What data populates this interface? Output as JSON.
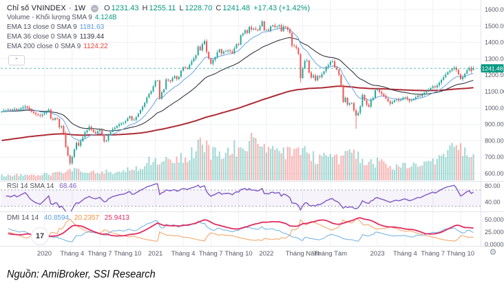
{
  "page": {
    "caption": "Nguồn: AmiBroker, SSI Research"
  },
  "header": {
    "title": "Chỉ số VNINDEX",
    "separator": "·",
    "interval": "1W",
    "dot_icon_glyph": "–",
    "ohlc": {
      "o_label": "O",
      "o": "1231.43",
      "h_label": "H",
      "h": "1255.11",
      "l_label": "L",
      "l": "1228.70",
      "c_label": "C",
      "c": "1241.48",
      "change": "+17.43 (+1.42%)"
    },
    "volume_label": "Volume - Khối lượng SMA 9",
    "volume_value": "4.124B",
    "ema13_label": "EMA 13 close 0 SMA 9",
    "ema13_value": "1181.63",
    "ema36_label": "EMA 36 close 0 SMA 9",
    "ema36_value": "1139.44",
    "ema200_label": "EMA 200 close 0 SMA 9",
    "ema200_value": "1124.22",
    "collapse_glyph": "⌃"
  },
  "rsi_panel": {
    "label": "RSI 14 SMA 14",
    "value": "68.46"
  },
  "dmi_panel": {
    "label": "DMI 14 14",
    "plus_di": "40.8594",
    "minus_di": "20.2357",
    "adx": "25.9413"
  },
  "watermark_glyph": "17",
  "gear_glyph": "⚙",
  "colors": {
    "up": "#26a69a",
    "down": "#ef5350",
    "ema13": "#74a9e6",
    "ema36": "#33363e",
    "ema200": "#ad2a34",
    "rsi": "#7e57c2",
    "rsi_band_fill": "#7e57c2",
    "plus_di": "#6aaede",
    "minus_di": "#f2a05c",
    "adx": "#e0295e",
    "grid": "#eef0f4",
    "separator": "#e0e3eb",
    "axis_text": "#565a65",
    "price_tag_bg": "#089981",
    "price_line": "#26a69a",
    "dashed_level": "#9aa0ad"
  },
  "chart_data": {
    "type": "candlestick",
    "title": "Chỉ số VNINDEX · 1W",
    "timeframe": "weekly",
    "price_axis": {
      "min": 600,
      "max": 1600,
      "step": 100,
      "last_price": 1241.48,
      "last_price_label": "1241.48"
    },
    "rsi_axis": {
      "ticks": [
        {
          "value": 80,
          "label": "80.00"
        },
        {
          "value": 40,
          "label": "40.00"
        }
      ],
      "upper_band": 70,
      "lower_band": 30
    },
    "dmi_axis": {
      "ticks": [
        {
          "value": 50,
          "label": "50.0000"
        },
        {
          "value": 25,
          "label": "25.0000"
        },
        {
          "value": 0,
          "label": "0.0000"
        }
      ]
    },
    "x_labels": [
      {
        "text": "2020",
        "week": 20
      },
      {
        "text": "Tháng 4",
        "week": 33
      },
      {
        "text": "Tháng 7",
        "week": 46
      },
      {
        "text": "Tháng 10",
        "week": 59
      },
      {
        "text": "2021",
        "week": 72
      },
      {
        "text": "Tháng 4",
        "week": 85
      },
      {
        "text": "Tháng 7",
        "week": 98
      },
      {
        "text": "Tháng 10",
        "week": 111
      },
      {
        "text": "2022",
        "week": 124
      },
      {
        "text": "Tháng Năm",
        "week": 141
      },
      {
        "text": "Tháng Tám",
        "week": 154
      },
      {
        "text": "2023",
        "week": 176
      },
      {
        "text": "Tháng 4",
        "week": 189
      },
      {
        "text": "Tháng 7",
        "week": 202
      },
      {
        "text": "Tháng 10",
        "week": 215
      }
    ],
    "closes": [
      978,
      984,
      988,
      990,
      985,
      990,
      995,
      988,
      992,
      998,
      1004,
      1010,
      1002,
      988,
      978,
      970,
      962,
      958,
      952,
      960,
      968,
      978,
      990,
      936,
      928,
      938,
      934,
      882,
      890,
      846,
      762,
      710,
      662,
      702,
      748,
      788,
      770,
      798,
      822,
      852,
      864,
      886,
      866,
      854,
      846,
      858,
      868,
      832,
      796,
      802,
      838,
      854,
      872,
      880,
      890,
      900,
      906,
      910,
      920,
      938,
      950,
      926,
      928,
      946,
      966,
      988,
      1008,
      1032,
      1064,
      1086,
      1102,
      1132,
      1166,
      1168,
      1056,
      1096,
      1114,
      1174,
      1168,
      1162,
      1182,
      1194,
      1176,
      1190,
      1228,
      1248,
      1244,
      1238,
      1264,
      1284,
      1302,
      1322,
      1374,
      1352,
      1390,
      1408,
      1342,
      1302,
      1270,
      1294,
      1310,
      1340,
      1358,
      1332,
      1344,
      1346,
      1352,
      1346,
      1334,
      1364,
      1390,
      1386,
      1444,
      1456,
      1474,
      1458,
      1494,
      1478,
      1484,
      1478,
      1474,
      1498,
      1528,
      1474,
      1478,
      1472,
      1498,
      1504,
      1494,
      1498,
      1504,
      1468,
      1498,
      1492,
      1478,
      1458,
      1380,
      1376,
      1366,
      1328,
      1182,
      1240,
      1286,
      1290,
      1216,
      1186,
      1198,
      1168,
      1194,
      1188,
      1206,
      1224,
      1252,
      1262,
      1282,
      1284,
      1248,
      1234,
      1202,
      1132,
      1036,
      1062,
      1020,
      1028,
      1030,
      986,
      954,
      970,
      1010,
      1080,
      1048,
      1020,
      1008,
      1052,
      1062,
      1108,
      1116,
      1098,
      1086,
      1072,
      1058,
      1040,
      1026,
      1036,
      1048,
      1052,
      1044,
      1050,
      1062,
      1066,
      1054,
      1042,
      1048,
      1056,
      1066,
      1076,
      1072,
      1082,
      1094,
      1104,
      1112,
      1122,
      1132,
      1126,
      1138,
      1154,
      1172,
      1188,
      1204,
      1218,
      1228,
      1238,
      1246,
      1232,
      1206,
      1176,
      1188,
      1210,
      1230,
      1246,
      1224,
      1241.48
    ],
    "last_candle": {
      "open": 1231.43,
      "high": 1255.11,
      "low": 1228.7,
      "close": 1241.48
    },
    "wick_overrides": {
      "32": {
        "low": 649
      },
      "122": {
        "high": 1536
      },
      "140": {
        "low": 1156
      },
      "166": {
        "low": 873
      }
    },
    "volume_unit": "B",
    "volume_anchors": [
      [
        0,
        0.85
      ],
      [
        18,
        0.95
      ],
      [
        26,
        1.2
      ],
      [
        30,
        1.5
      ],
      [
        33,
        1.7
      ],
      [
        38,
        1.5
      ],
      [
        44,
        1.3
      ],
      [
        48,
        1.5
      ],
      [
        54,
        1.4
      ],
      [
        58,
        1.7
      ],
      [
        62,
        1.9
      ],
      [
        66,
        2.6
      ],
      [
        70,
        3.3
      ],
      [
        73,
        3.6
      ],
      [
        76,
        3.2
      ],
      [
        80,
        3.4
      ],
      [
        84,
        3.8
      ],
      [
        88,
        4.4
      ],
      [
        92,
        5.6
      ],
      [
        95,
        6.1
      ],
      [
        98,
        4.8
      ],
      [
        102,
        4.6
      ],
      [
        106,
        5.0
      ],
      [
        110,
        5.4
      ],
      [
        114,
        6.6
      ],
      [
        116,
        6.9
      ],
      [
        119,
        6.0
      ],
      [
        122,
        5.3
      ],
      [
        126,
        4.6
      ],
      [
        130,
        4.9
      ],
      [
        134,
        4.5
      ],
      [
        139,
        5.5
      ],
      [
        141,
        5.8
      ],
      [
        144,
        4.4
      ],
      [
        148,
        3.3
      ],
      [
        152,
        3.9
      ],
      [
        156,
        3.7
      ],
      [
        159,
        3.3
      ],
      [
        162,
        4.3
      ],
      [
        165,
        4.1
      ],
      [
        168,
        3.7
      ],
      [
        171,
        3.3
      ],
      [
        174,
        2.9
      ],
      [
        177,
        3.1
      ],
      [
        180,
        2.5
      ],
      [
        184,
        2.2
      ],
      [
        188,
        2.5
      ],
      [
        192,
        2.4
      ],
      [
        196,
        2.7
      ],
      [
        200,
        3.2
      ],
      [
        204,
        3.9
      ],
      [
        208,
        4.5
      ],
      [
        211,
        5.1
      ],
      [
        214,
        5.7
      ],
      [
        216,
        4.8
      ],
      [
        219,
        4.3
      ],
      [
        221,
        4.5
      ]
    ],
    "indicators": {
      "ema_lengths": [
        13,
        36,
        200
      ],
      "ema200_seed": 800,
      "rsi_length": 14,
      "dmi_length": 14
    }
  }
}
